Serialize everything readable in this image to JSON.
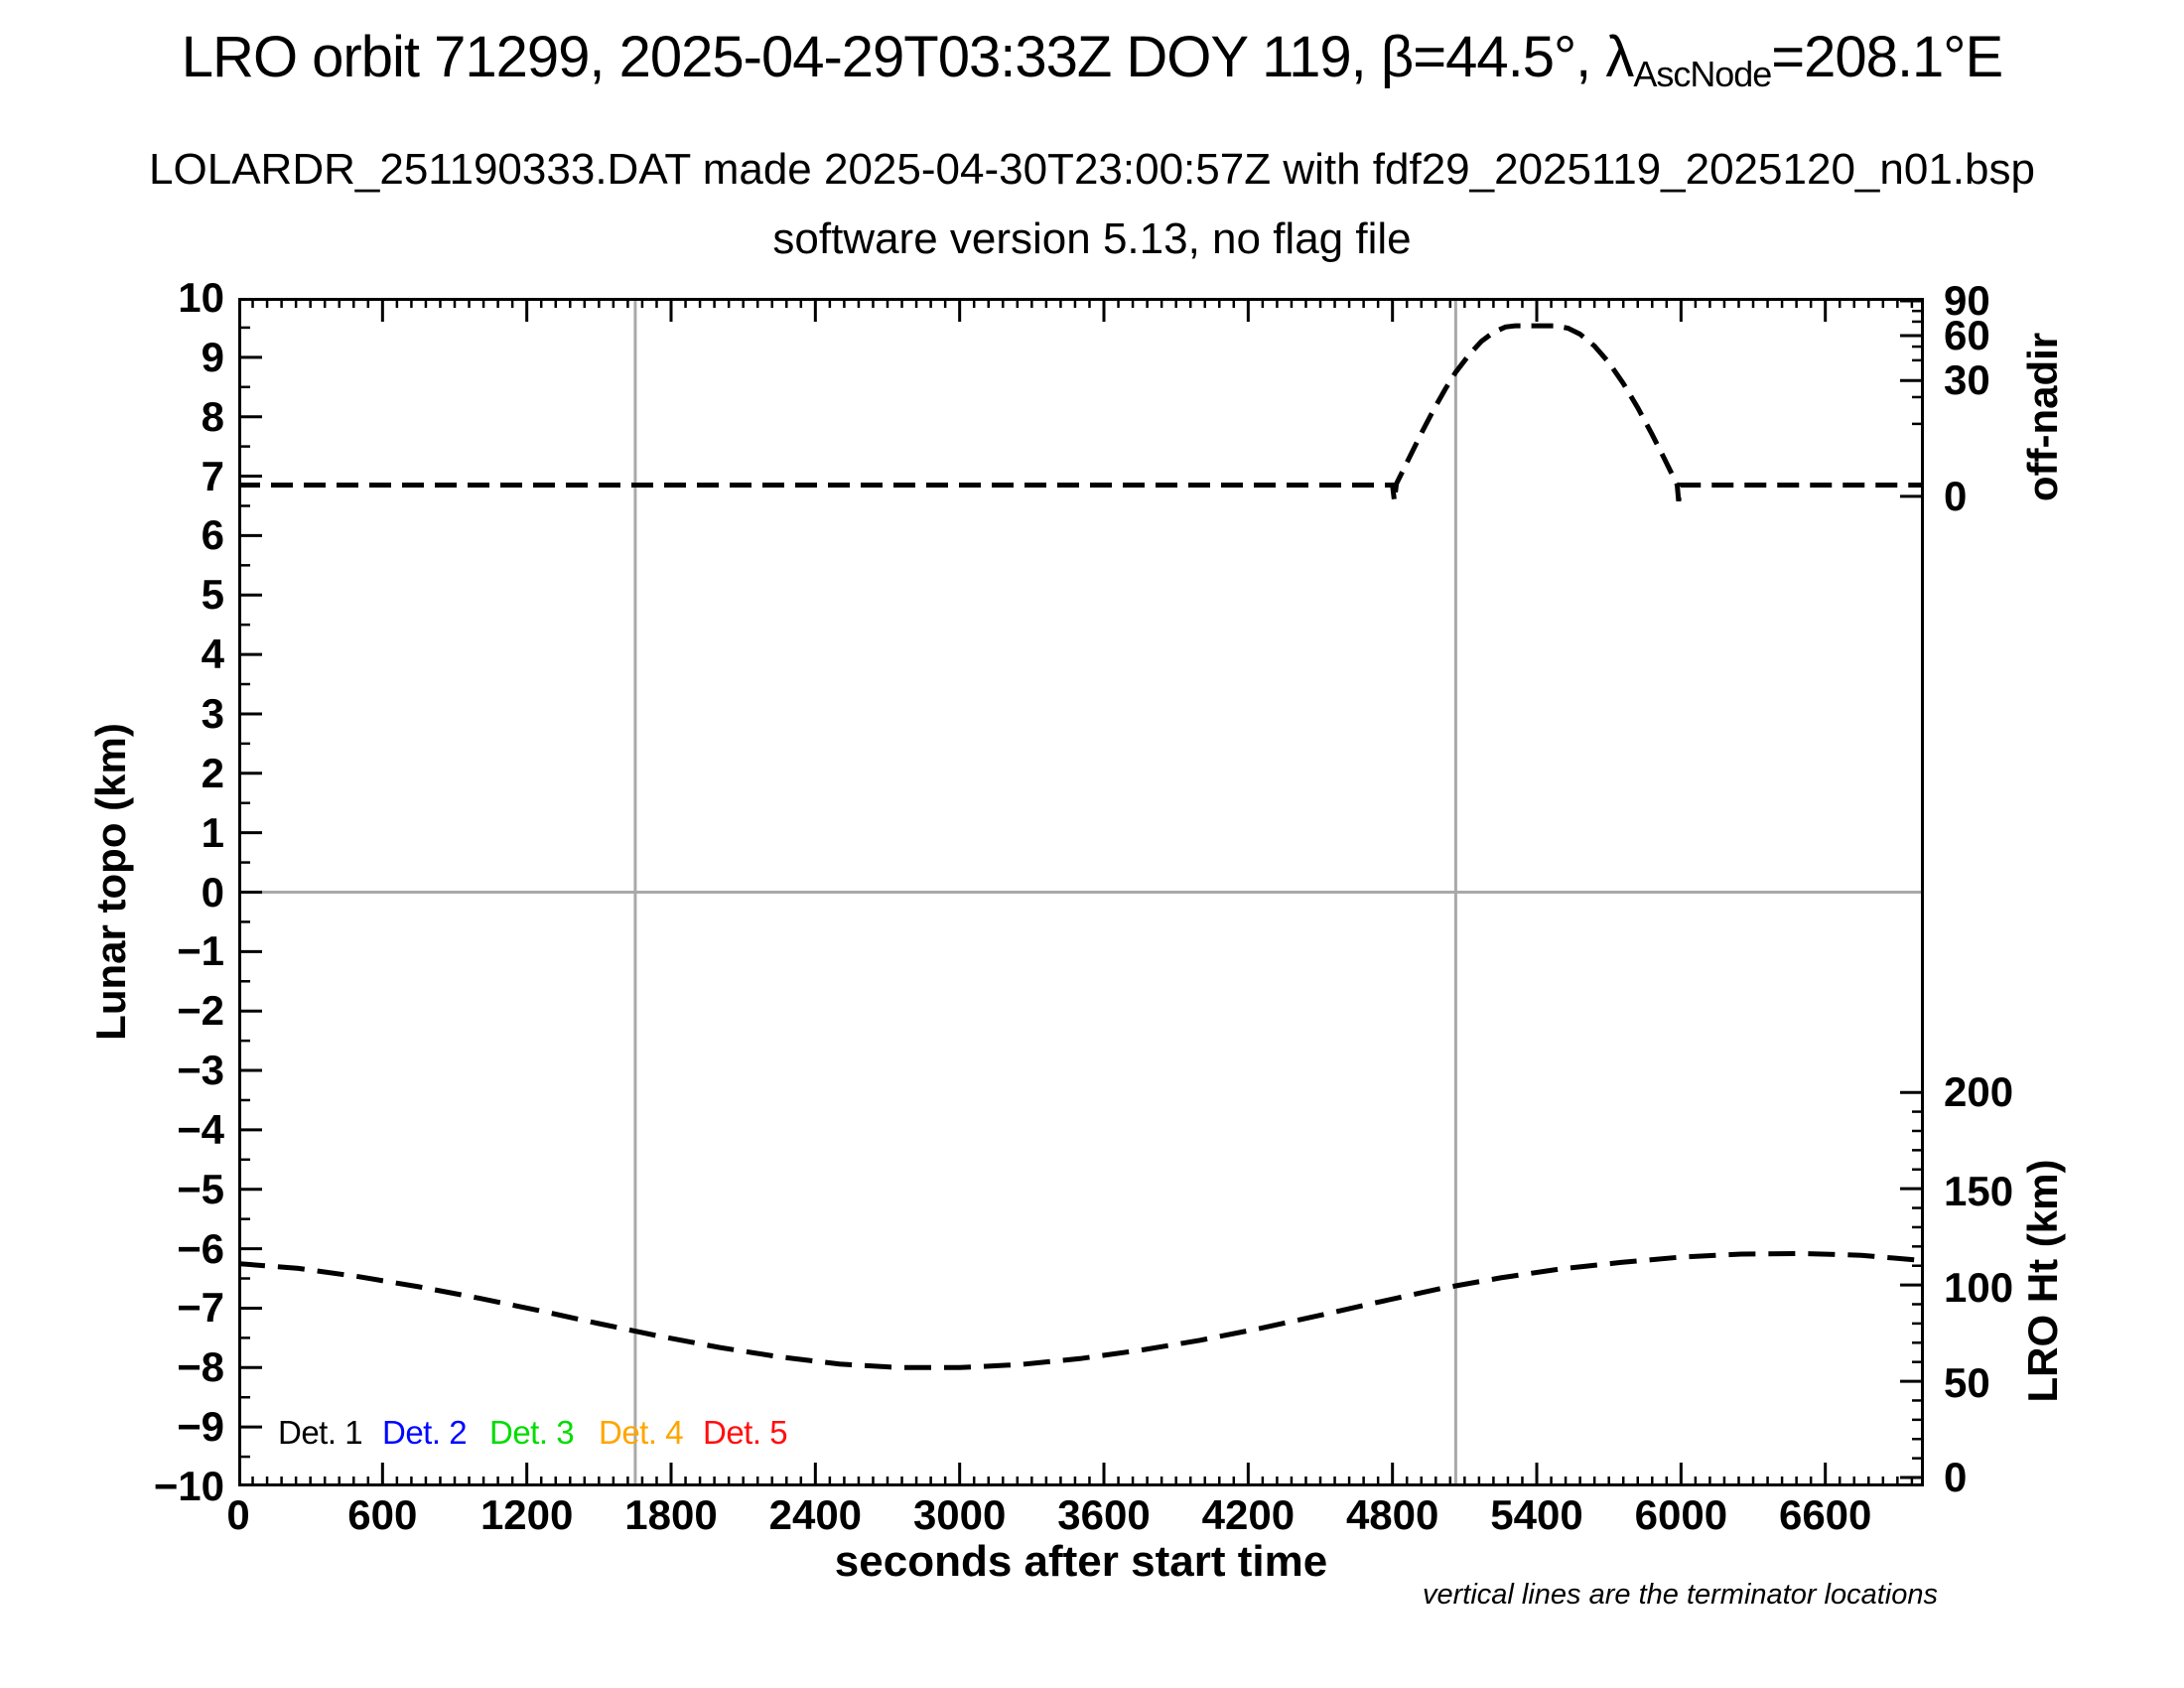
{
  "header": {
    "title_prefix": "LRO orbit 71299, 2025-04-29T03:33Z DOY 119, β=44.5°, λ",
    "title_sub": "AscNode",
    "title_suffix": "=208.1°E",
    "subtitle1": "LOLARDR_251190333.DAT made 2025-04-30T23:00:57Z with fdf29_2025119_2025120_n01.bsp",
    "subtitle2": "software version 5.13, no flag file"
  },
  "chart_data": {
    "type": "line",
    "title": "LRO orbit 71299, 2025-04-29T03:33Z DOY 119, β=44.5°, λAscNode=208.1°E",
    "xlabel": "seconds after start time",
    "ylabel_left": "Lunar topo (km)",
    "ylabel_right_top": "off-nadir",
    "ylabel_right_bottom": "LRO Ht (km)",
    "footnote": "vertical lines are the terminator locations",
    "x_range": [
      0,
      7010
    ],
    "y_left_range": [
      -10,
      10
    ],
    "x_major_ticks": [
      0,
      600,
      1200,
      1800,
      2400,
      3000,
      3600,
      4200,
      4800,
      5400,
      6000,
      6600
    ],
    "x_tick_labels": [
      "0",
      "600",
      "1200",
      "1800",
      "2400",
      "3000",
      "3600",
      "4200",
      "4800",
      "5400",
      "6000",
      "6600"
    ],
    "x_minor_step": 60,
    "y_left_major_ticks": [
      10,
      9,
      8,
      7,
      6,
      5,
      4,
      3,
      2,
      1,
      0,
      -1,
      -2,
      -3,
      -4,
      -5,
      -6,
      -7,
      -8,
      -9,
      -10
    ],
    "y_left_tick_labels": [
      "10",
      "9",
      "8",
      "7",
      "6",
      "5",
      "4",
      "3",
      "2",
      "1",
      "0",
      "−1",
      "−2",
      "−3",
      "−4",
      "−5",
      "−6",
      "−7",
      "−8",
      "−9",
      "−10"
    ],
    "y_left_minor_step": 0.5,
    "grid": {
      "zero_line_y": 0,
      "terminator_lines_x": [
        1651,
        5063
      ],
      "color": "#a9a9a9"
    },
    "off_nadir_axis": {
      "major": [
        {
          "label": "90",
          "topo": 9.95
        },
        {
          "label": "60",
          "topo": 9.365
        },
        {
          "label": "30",
          "topo": 8.61
        },
        {
          "label": "0",
          "topo": 6.66
        }
      ],
      "minor_topo": [
        9.78,
        9.6,
        9.18,
        8.95,
        8.33,
        7.88
      ]
    },
    "lro_ht_axis": {
      "major": [
        {
          "label": "0",
          "topo": -9.85
        },
        {
          "label": "50",
          "topo": -8.26
        },
        {
          "label": "100",
          "topo": -6.66
        },
        {
          "label": "150",
          "topo": -5.04
        },
        {
          "label": "200",
          "topo": -3.37
        }
      ],
      "zero_topo": -9.85,
      "topo_per_km": 0.0324,
      "minor_km_step": 10,
      "max_km": 200
    },
    "series": [
      {
        "name": "off-nadir angle (deg, right top scale)",
        "color": "#000000",
        "dash": [
          22,
          11
        ],
        "width": 5,
        "points": [
          [
            0,
            6.85
          ],
          [
            600,
            6.85
          ],
          [
            1200,
            6.85
          ],
          [
            1800,
            6.85
          ],
          [
            2400,
            6.85
          ],
          [
            3000,
            6.85
          ],
          [
            3600,
            6.85
          ],
          [
            4200,
            6.85
          ],
          [
            4700,
            6.85
          ],
          [
            4800,
            6.85
          ],
          [
            4808,
            6.58
          ],
          [
            4816,
            6.87
          ],
          [
            4870,
            7.31
          ],
          [
            4920,
            7.72
          ],
          [
            4970,
            8.11
          ],
          [
            5020,
            8.47
          ],
          [
            5063,
            8.75
          ],
          [
            5120,
            9.05
          ],
          [
            5170,
            9.27
          ],
          [
            5220,
            9.42
          ],
          [
            5270,
            9.51
          ],
          [
            5311,
            9.53
          ],
          [
            5476,
            9.53
          ],
          [
            5530,
            9.49
          ],
          [
            5580,
            9.39
          ],
          [
            5640,
            9.19
          ],
          [
            5700,
            8.91
          ],
          [
            5760,
            8.56
          ],
          [
            5820,
            8.15
          ],
          [
            5880,
            7.7
          ],
          [
            5930,
            7.3
          ],
          [
            5970,
            6.97
          ],
          [
            5984,
            6.85
          ],
          [
            5990,
            6.58
          ],
          [
            5998,
            6.85
          ],
          [
            6300,
            6.85
          ],
          [
            6700,
            6.85
          ],
          [
            7010,
            6.85
          ]
        ]
      },
      {
        "name": "LRO height (km, right bottom scale)",
        "color": "#000000",
        "dash": [
          27,
          13
        ],
        "width": 5,
        "points": [
          [
            0,
            -6.25
          ],
          [
            250,
            -6.33
          ],
          [
            500,
            -6.47
          ],
          [
            750,
            -6.64
          ],
          [
            1000,
            -6.83
          ],
          [
            1250,
            -7.04
          ],
          [
            1500,
            -7.26
          ],
          [
            1750,
            -7.47
          ],
          [
            2000,
            -7.66
          ],
          [
            2250,
            -7.82
          ],
          [
            2500,
            -7.94
          ],
          [
            2750,
            -8.0
          ],
          [
            3000,
            -8.0
          ],
          [
            3250,
            -7.95
          ],
          [
            3500,
            -7.85
          ],
          [
            3750,
            -7.71
          ],
          [
            4000,
            -7.54
          ],
          [
            4250,
            -7.34
          ],
          [
            4500,
            -7.12
          ],
          [
            4750,
            -6.89
          ],
          [
            5000,
            -6.67
          ],
          [
            5250,
            -6.49
          ],
          [
            5500,
            -6.34
          ],
          [
            5750,
            -6.23
          ],
          [
            6000,
            -6.14
          ],
          [
            6250,
            -6.09
          ],
          [
            6500,
            -6.08
          ],
          [
            6750,
            -6.11
          ],
          [
            7010,
            -6.2
          ]
        ]
      }
    ],
    "legend": {
      "entries": [
        {
          "label": "Det. 1",
          "color": "#000000"
        },
        {
          "label": "Det. 2",
          "color": "#0008ff"
        },
        {
          "label": "Det. 3",
          "color": "#00dd00"
        },
        {
          "label": "Det. 4",
          "color": "#ffa500"
        },
        {
          "label": "Det. 5",
          "color": "#ff0f0f"
        }
      ],
      "x_offsets": [
        40,
        145,
        253,
        363,
        468
      ],
      "y_offset": 1143
    }
  }
}
